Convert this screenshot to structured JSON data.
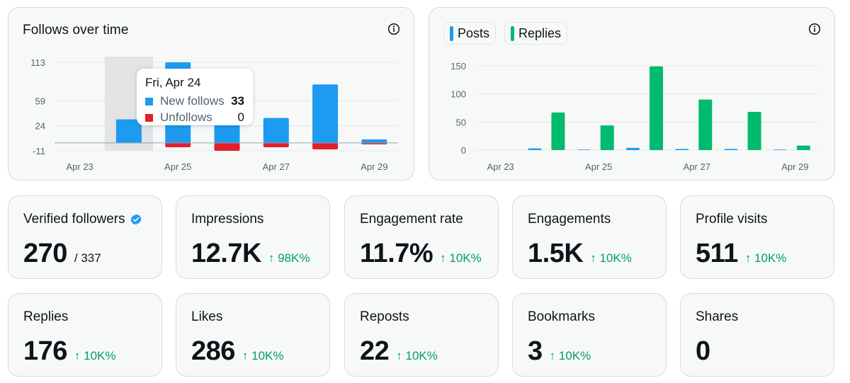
{
  "colors": {
    "blue": "#1d9bf0",
    "red": "#e0202a",
    "green": "#00ba6d",
    "delta_green": "#00a05a"
  },
  "follows_chart": {
    "title": "Follows over time",
    "info_icon": "info-icon",
    "tooltip": {
      "title": "Fri, Apr 24",
      "new_label": "New follows",
      "new_value": "33",
      "unf_label": "Unfollows",
      "unf_value": "0"
    }
  },
  "posts_chart": {
    "legend_posts": "Posts",
    "legend_replies": "Replies",
    "info_icon": "info-icon"
  },
  "chart_data": [
    {
      "type": "bar",
      "title": "Follows over time",
      "y_ticks": [
        "113",
        "59",
        "24",
        "-11"
      ],
      "ylim": [
        -11,
        113
      ],
      "x_ticks": [
        "Apr 23",
        "Apr 25",
        "Apr 27",
        "Apr 29"
      ],
      "categories": [
        "Apr 23",
        "Apr 24",
        "Apr 25",
        "Apr 26",
        "Apr 27",
        "Apr 28",
        "Apr 29"
      ],
      "highlighted": "Apr 24",
      "series": [
        {
          "name": "New follows",
          "values": [
            0,
            33,
            113,
            28,
            35,
            82,
            5
          ]
        },
        {
          "name": "Unfollows",
          "values": [
            0,
            0,
            -6,
            -11,
            -6,
            -9,
            -2
          ]
        }
      ]
    },
    {
      "type": "bar",
      "title": "",
      "y_ticks": [
        "150",
        "100",
        "50",
        "0"
      ],
      "ylim": [
        0,
        150
      ],
      "x_ticks": [
        "Apr 23",
        "Apr 25",
        "Apr 27",
        "Apr 29"
      ],
      "categories": [
        "Apr 23",
        "Apr 24",
        "Apr 25",
        "Apr 26",
        "Apr 27",
        "Apr 28",
        "Apr 29"
      ],
      "series": [
        {
          "name": "Posts",
          "values": [
            0,
            3,
            1,
            4,
            2,
            2,
            1
          ]
        },
        {
          "name": "Replies",
          "values": [
            0,
            67,
            44,
            149,
            90,
            68,
            8
          ]
        }
      ]
    }
  ],
  "stats": [
    {
      "label": "Verified followers",
      "value": "270",
      "sub": "/ 337",
      "verified": true
    },
    {
      "label": "Impressions",
      "value": "12.7K",
      "delta": "↑ 98K%"
    },
    {
      "label": "Engagement rate",
      "value": "11.7%",
      "delta": "↑ 10K%"
    },
    {
      "label": "Engagements",
      "value": "1.5K",
      "delta": "↑ 10K%"
    },
    {
      "label": "Profile visits",
      "value": "511",
      "delta": "↑ 10K%"
    },
    {
      "label": "Replies",
      "value": "176",
      "delta": "↑ 10K%"
    },
    {
      "label": "Likes",
      "value": "286",
      "delta": "↑ 10K%"
    },
    {
      "label": "Reposts",
      "value": "22",
      "delta": "↑ 10K%"
    },
    {
      "label": "Bookmarks",
      "value": "3",
      "delta": "↑ 10K%"
    },
    {
      "label": "Shares",
      "value": "0"
    }
  ]
}
